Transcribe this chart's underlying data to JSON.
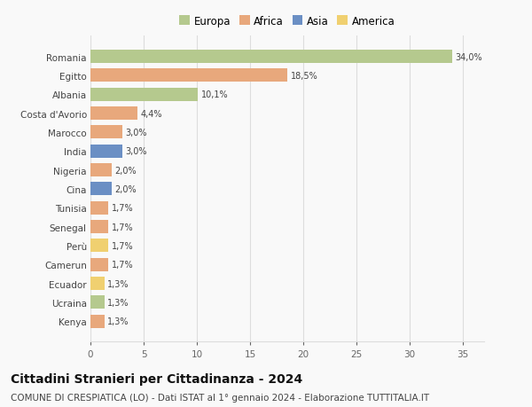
{
  "countries": [
    "Kenya",
    "Ucraina",
    "Ecuador",
    "Camerun",
    "Perù",
    "Senegal",
    "Tunisia",
    "Cina",
    "Nigeria",
    "India",
    "Marocco",
    "Costa d'Avorio",
    "Albania",
    "Egitto",
    "Romania"
  ],
  "values": [
    1.3,
    1.3,
    1.3,
    1.7,
    1.7,
    1.7,
    1.7,
    2.0,
    2.0,
    3.0,
    3.0,
    4.4,
    10.1,
    18.5,
    34.0
  ],
  "labels": [
    "1,3%",
    "1,3%",
    "1,3%",
    "1,7%",
    "1,7%",
    "1,7%",
    "1,7%",
    "2,0%",
    "2,0%",
    "3,0%",
    "3,0%",
    "4,4%",
    "10,1%",
    "18,5%",
    "34,0%"
  ],
  "colors": [
    "#e8a87c",
    "#b5c98e",
    "#f0d070",
    "#e8a87c",
    "#f0d070",
    "#e8a87c",
    "#e8a87c",
    "#6b8fc4",
    "#e8a87c",
    "#6b8fc4",
    "#e8a87c",
    "#e8a87c",
    "#b5c98e",
    "#e8a87c",
    "#b5c98e"
  ],
  "continent_colors": {
    "Europa": "#b5c98e",
    "Africa": "#e8a87c",
    "Asia": "#6b8fc4",
    "America": "#f0d070"
  },
  "title": "Cittadini Stranieri per Cittadinanza - 2024",
  "subtitle": "COMUNE DI CRESPIATICA (LO) - Dati ISTAT al 1° gennaio 2024 - Elaborazione TUTTITALIA.IT",
  "xlim": [
    0,
    37
  ],
  "xticks": [
    0,
    5,
    10,
    15,
    20,
    25,
    30,
    35
  ],
  "bg_color": "#f9f9f9",
  "grid_color": "#dddddd",
  "bar_height": 0.7,
  "title_fontsize": 10,
  "subtitle_fontsize": 7.5,
  "label_fontsize": 7,
  "tick_fontsize": 7.5,
  "legend_fontsize": 8.5
}
